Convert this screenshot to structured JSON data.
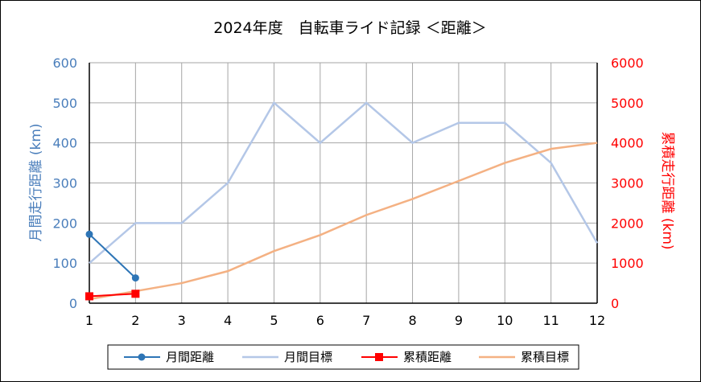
{
  "chart_data": {
    "type": "line",
    "title": "2024年度　自転車ライド記録 ＜距離＞",
    "x": [
      1,
      2,
      3,
      4,
      5,
      6,
      7,
      8,
      9,
      10,
      11,
      12
    ],
    "xlim": [
      1,
      12
    ],
    "ylabel_left": "月間走行距離 (km)",
    "ylabel_right": "累積走行距離 (km)",
    "ylim_left": [
      0,
      600
    ],
    "ylim_right": [
      0,
      6000
    ],
    "yticks_left": [
      0,
      100,
      200,
      300,
      400,
      500,
      600
    ],
    "yticks_right": [
      0,
      1000,
      2000,
      3000,
      4000,
      5000,
      6000
    ],
    "grid": true,
    "legend_position": "bottom",
    "colors": {
      "left_axis": "#4a7ebb",
      "right_axis": "#ff0000"
    },
    "series": [
      {
        "name": "月間距離",
        "axis": "left",
        "color": "#2e75b6",
        "marker": "circle",
        "x": [
          1,
          2
        ],
        "values": [
          172,
          63
        ]
      },
      {
        "name": "月間目標",
        "axis": "left",
        "color": "#b4c7e7",
        "marker": "none",
        "x": [
          1,
          2,
          3,
          4,
          5,
          6,
          7,
          8,
          9,
          10,
          11,
          12
        ],
        "values": [
          100,
          200,
          200,
          300,
          500,
          400,
          500,
          400,
          450,
          450,
          350,
          150
        ]
      },
      {
        "name": "累積距離",
        "axis": "right",
        "color": "#ff0000",
        "marker": "square",
        "x": [
          1,
          2
        ],
        "values": [
          172,
          235
        ]
      },
      {
        "name": "累積目標",
        "axis": "right",
        "color": "#f4b183",
        "marker": "none",
        "x": [
          1,
          2,
          3,
          4,
          5,
          6,
          7,
          8,
          9,
          10,
          11,
          12
        ],
        "values": [
          100,
          300,
          500,
          800,
          1300,
          1700,
          2200,
          2600,
          3050,
          3500,
          3850,
          4000
        ]
      }
    ]
  }
}
